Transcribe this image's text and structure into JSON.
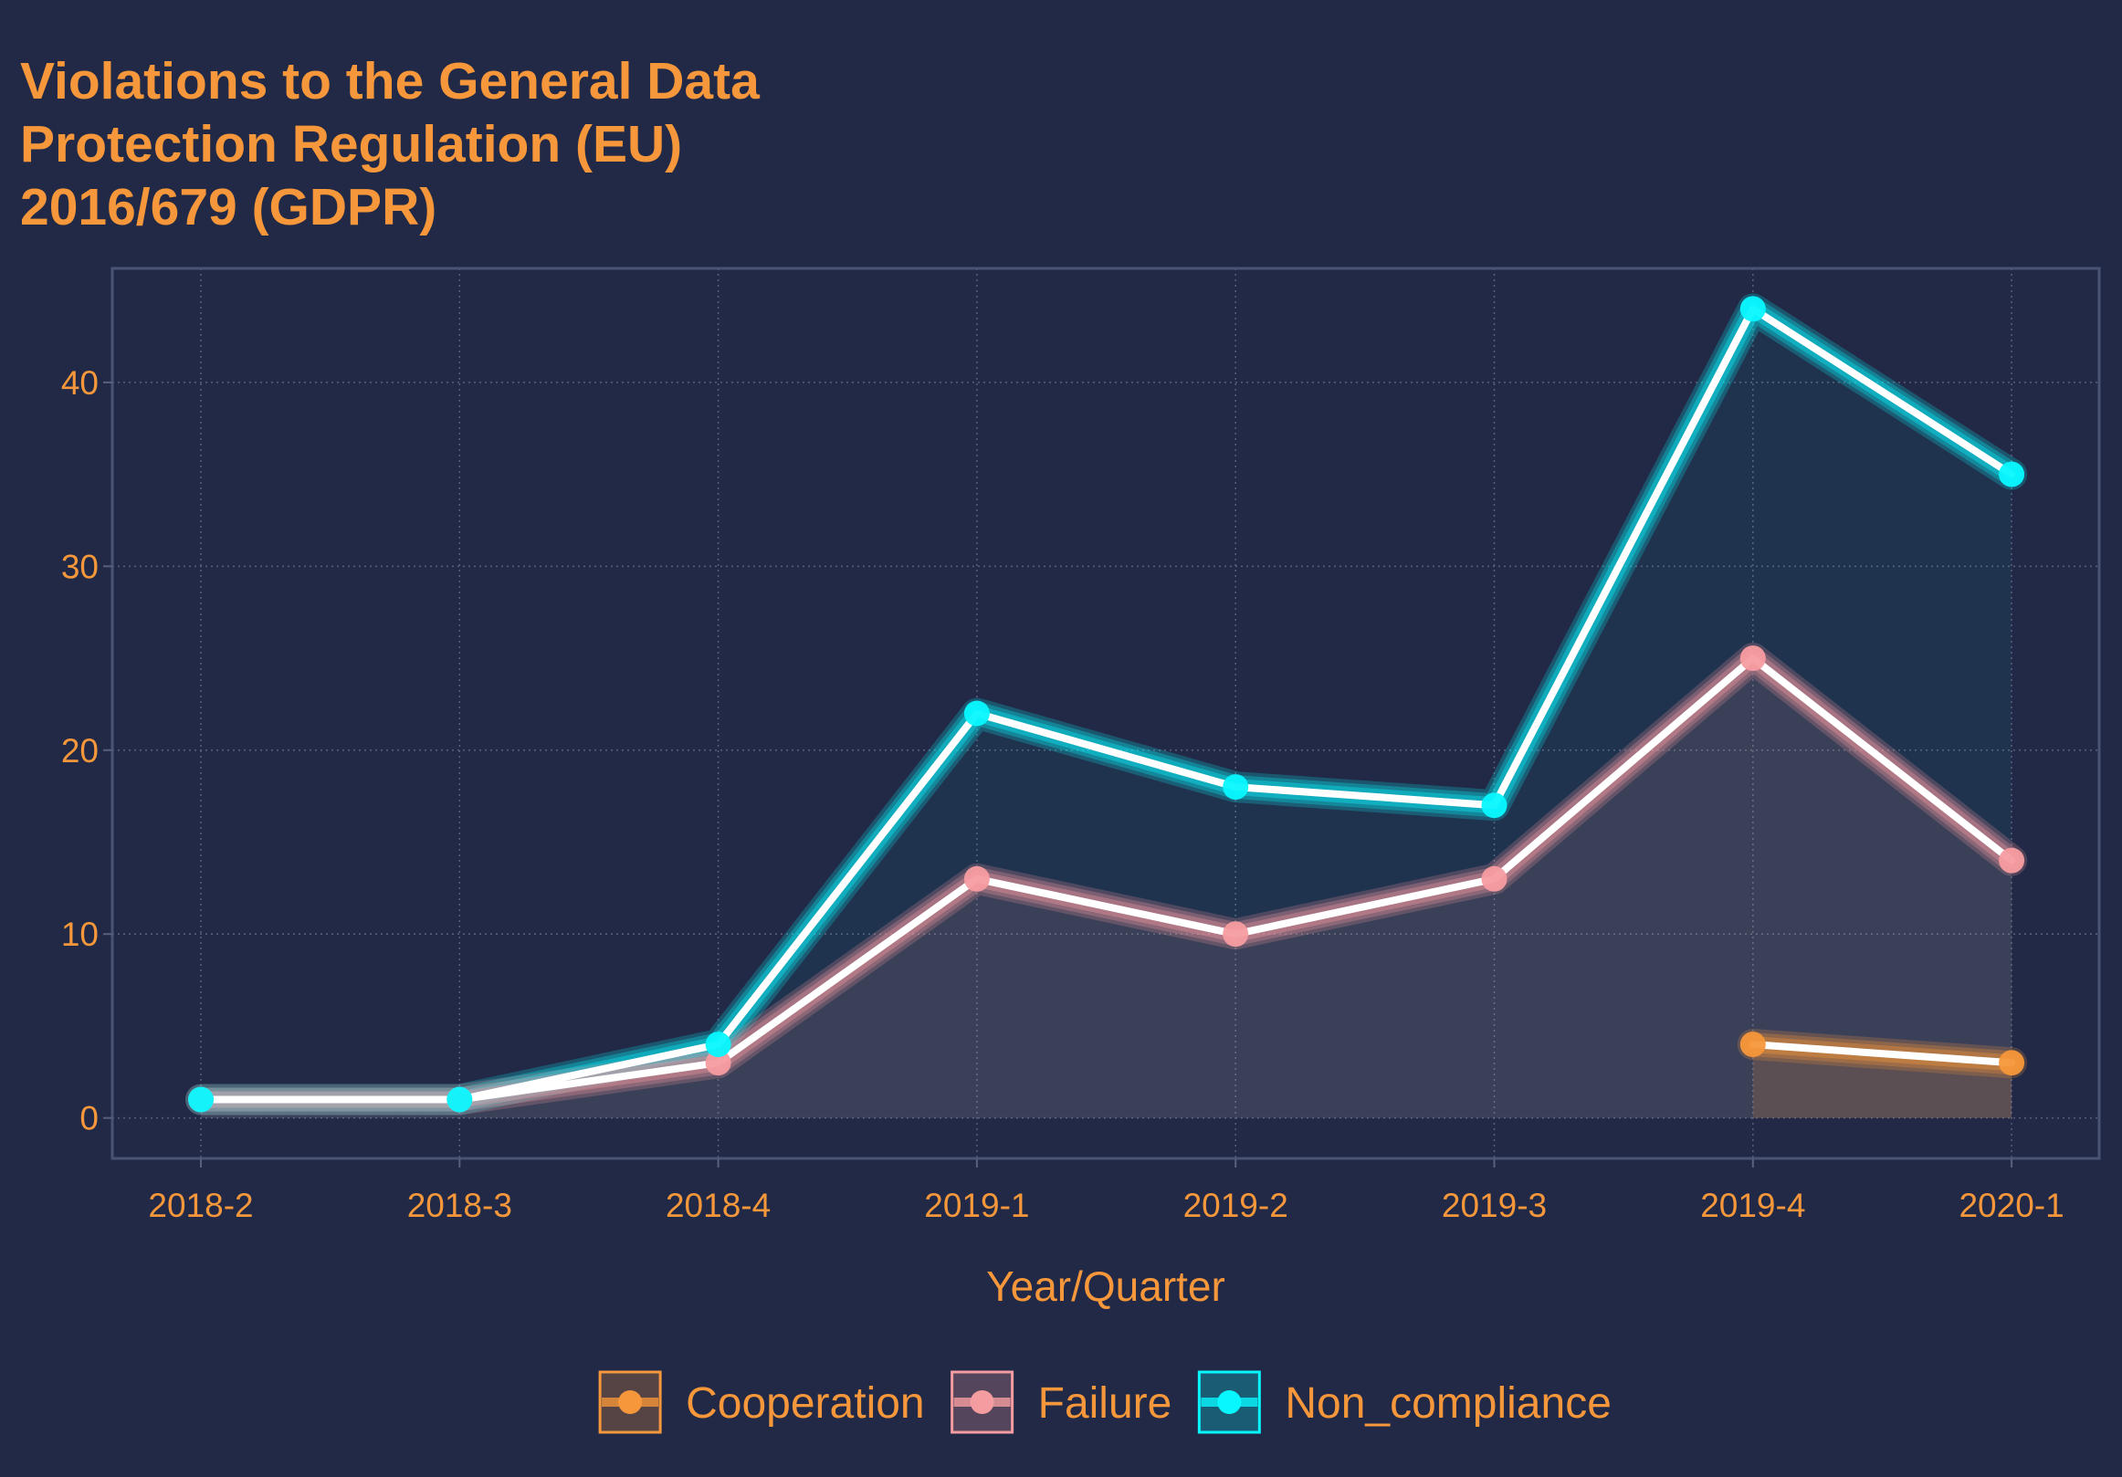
{
  "chart_data": {
    "type": "line",
    "title_lines": [
      "Violations to the General Data",
      "Protection Regulation (EU)",
      "2016/679 (GDPR)"
    ],
    "xlabel": "Year/Quarter",
    "ylabel": "",
    "categories": [
      "2018-2",
      "2018-3",
      "2018-4",
      "2019-1",
      "2019-2",
      "2019-3",
      "2019-4",
      "2020-1"
    ],
    "ylim": [
      -2.2,
      46.2
    ],
    "yticks": [
      0,
      10,
      20,
      30,
      40
    ],
    "ytick_labels": [
      "0",
      "10",
      "20",
      "30",
      "40"
    ],
    "grid": true,
    "legend_position": "bottom",
    "series": [
      {
        "name": "Cooperation",
        "color": "#F5973A",
        "values": [
          null,
          null,
          null,
          null,
          null,
          null,
          4,
          3
        ]
      },
      {
        "name": "Failure",
        "color": "#F59CA0",
        "values": [
          1,
          1,
          3,
          13,
          10,
          13,
          25,
          14
        ]
      },
      {
        "name": "Non_compliance",
        "color": "#08F7FE",
        "values": [
          1,
          1,
          4,
          22,
          18,
          17,
          44,
          35
        ]
      }
    ],
    "theme": {
      "background": "#212946",
      "text": "#F5973A",
      "grid": "#5A5F7A",
      "panel_border": "#4B5375",
      "line_core": "#FFFFFF"
    }
  }
}
